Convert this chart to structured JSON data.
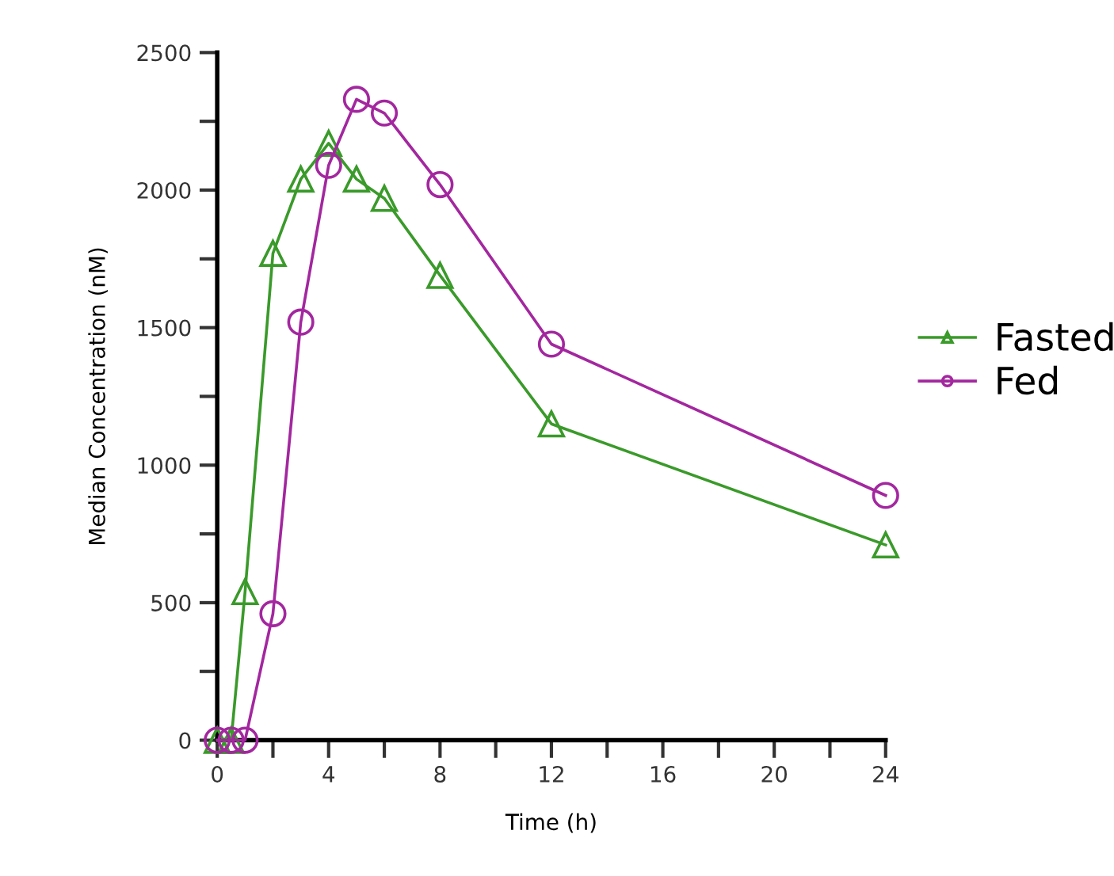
{
  "chart_data": {
    "type": "line",
    "xlabel": "Time (h)",
    "ylabel": "Median Concentration (nM)",
    "xlim": [
      0,
      24
    ],
    "ylim": [
      0,
      2500
    ],
    "xticks": [
      0,
      {
        "value": 2,
        "label": null
      },
      4,
      {
        "value": 6,
        "label": null
      },
      8,
      {
        "value": 10,
        "label": null
      },
      12,
      {
        "value": 14,
        "label": null
      },
      16,
      {
        "value": 18,
        "label": null
      },
      20,
      {
        "value": 22,
        "label": null
      },
      24
    ],
    "yticks": [
      0,
      {
        "value": 250,
        "label": null
      },
      500,
      {
        "value": 750,
        "label": null
      },
      1000,
      {
        "value": 1250,
        "label": null
      },
      1500,
      {
        "value": 1750,
        "label": null
      },
      2000,
      {
        "value": 2250,
        "label": null
      },
      2500
    ],
    "grid": false,
    "legend": "right",
    "line_style": "solid",
    "series": [
      {
        "name": "Fasted",
        "color": "#3a9a2a",
        "marker": "triangle",
        "x": [
          0,
          0.5,
          1,
          2,
          3,
          4,
          5,
          6,
          8,
          12,
          24
        ],
        "values": [
          0,
          0,
          540,
          1770,
          2040,
          2170,
          2040,
          1970,
          1690,
          1150,
          710
        ]
      },
      {
        "name": "Fed",
        "color": "#a3279f",
        "marker": "circle",
        "x": [
          0,
          0.5,
          1,
          2,
          3,
          4,
          5,
          6,
          8,
          12,
          24
        ],
        "values": [
          0,
          0,
          0,
          460,
          1520,
          2090,
          2330,
          2280,
          2020,
          1440,
          890
        ]
      }
    ]
  }
}
